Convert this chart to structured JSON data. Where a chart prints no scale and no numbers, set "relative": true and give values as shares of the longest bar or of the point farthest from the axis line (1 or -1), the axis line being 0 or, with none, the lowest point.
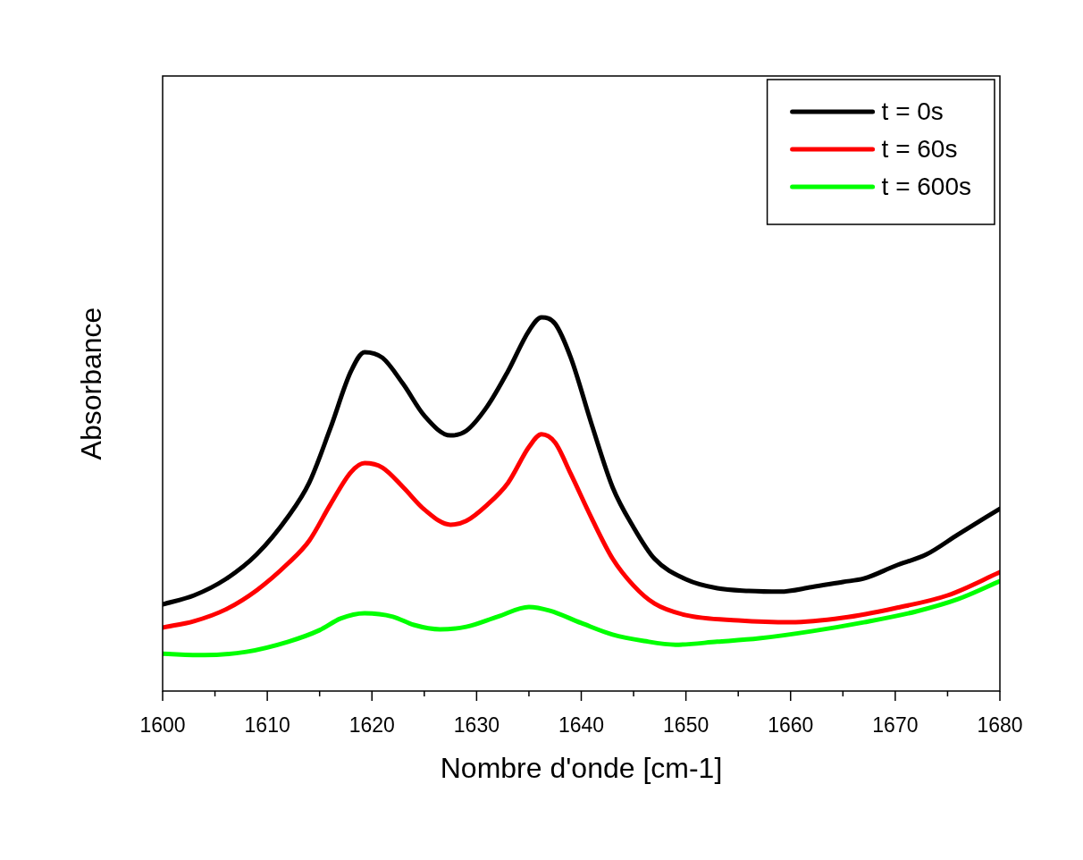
{
  "chart_data": {
    "type": "line",
    "relative": true,
    "xlabel": "Nombre d'onde [cm-1]",
    "ylabel": "Absorbance",
    "xlim": [
      1600,
      1680
    ],
    "xticks": [
      1600,
      {
        "value": 1605,
        "label": null
      },
      1610,
      {
        "value": 1615,
        "label": null
      },
      1620,
      {
        "value": 1625,
        "label": null
      },
      1630,
      {
        "value": 1635,
        "label": null
      },
      1640,
      {
        "value": 1645,
        "label": null
      },
      1650,
      {
        "value": 1655,
        "label": null
      },
      1660,
      {
        "value": 1665,
        "label": null
      },
      1670,
      {
        "value": 1675,
        "label": null
      },
      1680
    ],
    "legend": "top right",
    "grid": false,
    "marker": "none",
    "line_style": "solid",
    "series": [
      {
        "name": "t = 0s",
        "color": "#000000",
        "x": [
          1600,
          1603,
          1606,
          1609,
          1612,
          1614,
          1616,
          1618,
          1619.3,
          1621,
          1623,
          1625,
          1627.5,
          1629,
          1631,
          1633,
          1635,
          1636.2,
          1637.5,
          1639,
          1641,
          1643,
          1645,
          1647,
          1650,
          1653,
          1656,
          1659,
          1662,
          1665,
          1667,
          1670,
          1673,
          1676,
          1680
        ],
        "values": [
          0.232,
          0.256,
          0.299,
          0.366,
          0.467,
          0.557,
          0.701,
          0.856,
          0.907,
          0.892,
          0.821,
          0.737,
          0.684,
          0.696,
          0.761,
          0.856,
          0.964,
          1,
          0.983,
          0.892,
          0.713,
          0.545,
          0.438,
          0.354,
          0.299,
          0.275,
          0.268,
          0.266,
          0.278,
          0.292,
          0.301,
          0.335,
          0.366,
          0.419,
          0.488
        ]
      },
      {
        "name": "t = 60s",
        "color": "#ff0000",
        "x": [
          1600,
          1603,
          1606,
          1609,
          1612,
          1614,
          1616,
          1618,
          1619.3,
          1621,
          1623,
          1625,
          1627.5,
          1629,
          1631,
          1633,
          1635,
          1636.2,
          1637.5,
          1639,
          1641,
          1643,
          1645,
          1647,
          1650,
          1655,
          1660,
          1665,
          1670,
          1675,
          1680
        ],
        "values": [
          0.17,
          0.187,
          0.218,
          0.27,
          0.342,
          0.402,
          0.498,
          0.586,
          0.61,
          0.598,
          0.545,
          0.486,
          0.445,
          0.455,
          0.498,
          0.557,
          0.653,
          0.687,
          0.665,
          0.581,
          0.462,
          0.354,
          0.282,
          0.234,
          0.203,
          0.189,
          0.184,
          0.196,
          0.222,
          0.256,
          0.318
        ]
      },
      {
        "name": "t = 600s",
        "color": "#00ff00",
        "x": [
          1600,
          1604,
          1608,
          1612,
          1615,
          1617,
          1619.3,
          1622,
          1624,
          1626.5,
          1629,
          1632,
          1635,
          1637,
          1640,
          1643,
          1646,
          1649,
          1653,
          1657,
          1662,
          1667,
          1672,
          1676,
          1680
        ],
        "values": [
          0.1,
          0.096,
          0.105,
          0.132,
          0.163,
          0.194,
          0.208,
          0.199,
          0.177,
          0.165,
          0.172,
          0.199,
          0.225,
          0.215,
          0.182,
          0.151,
          0.134,
          0.124,
          0.132,
          0.141,
          0.16,
          0.184,
          0.213,
          0.246,
          0.294
        ]
      }
    ]
  }
}
